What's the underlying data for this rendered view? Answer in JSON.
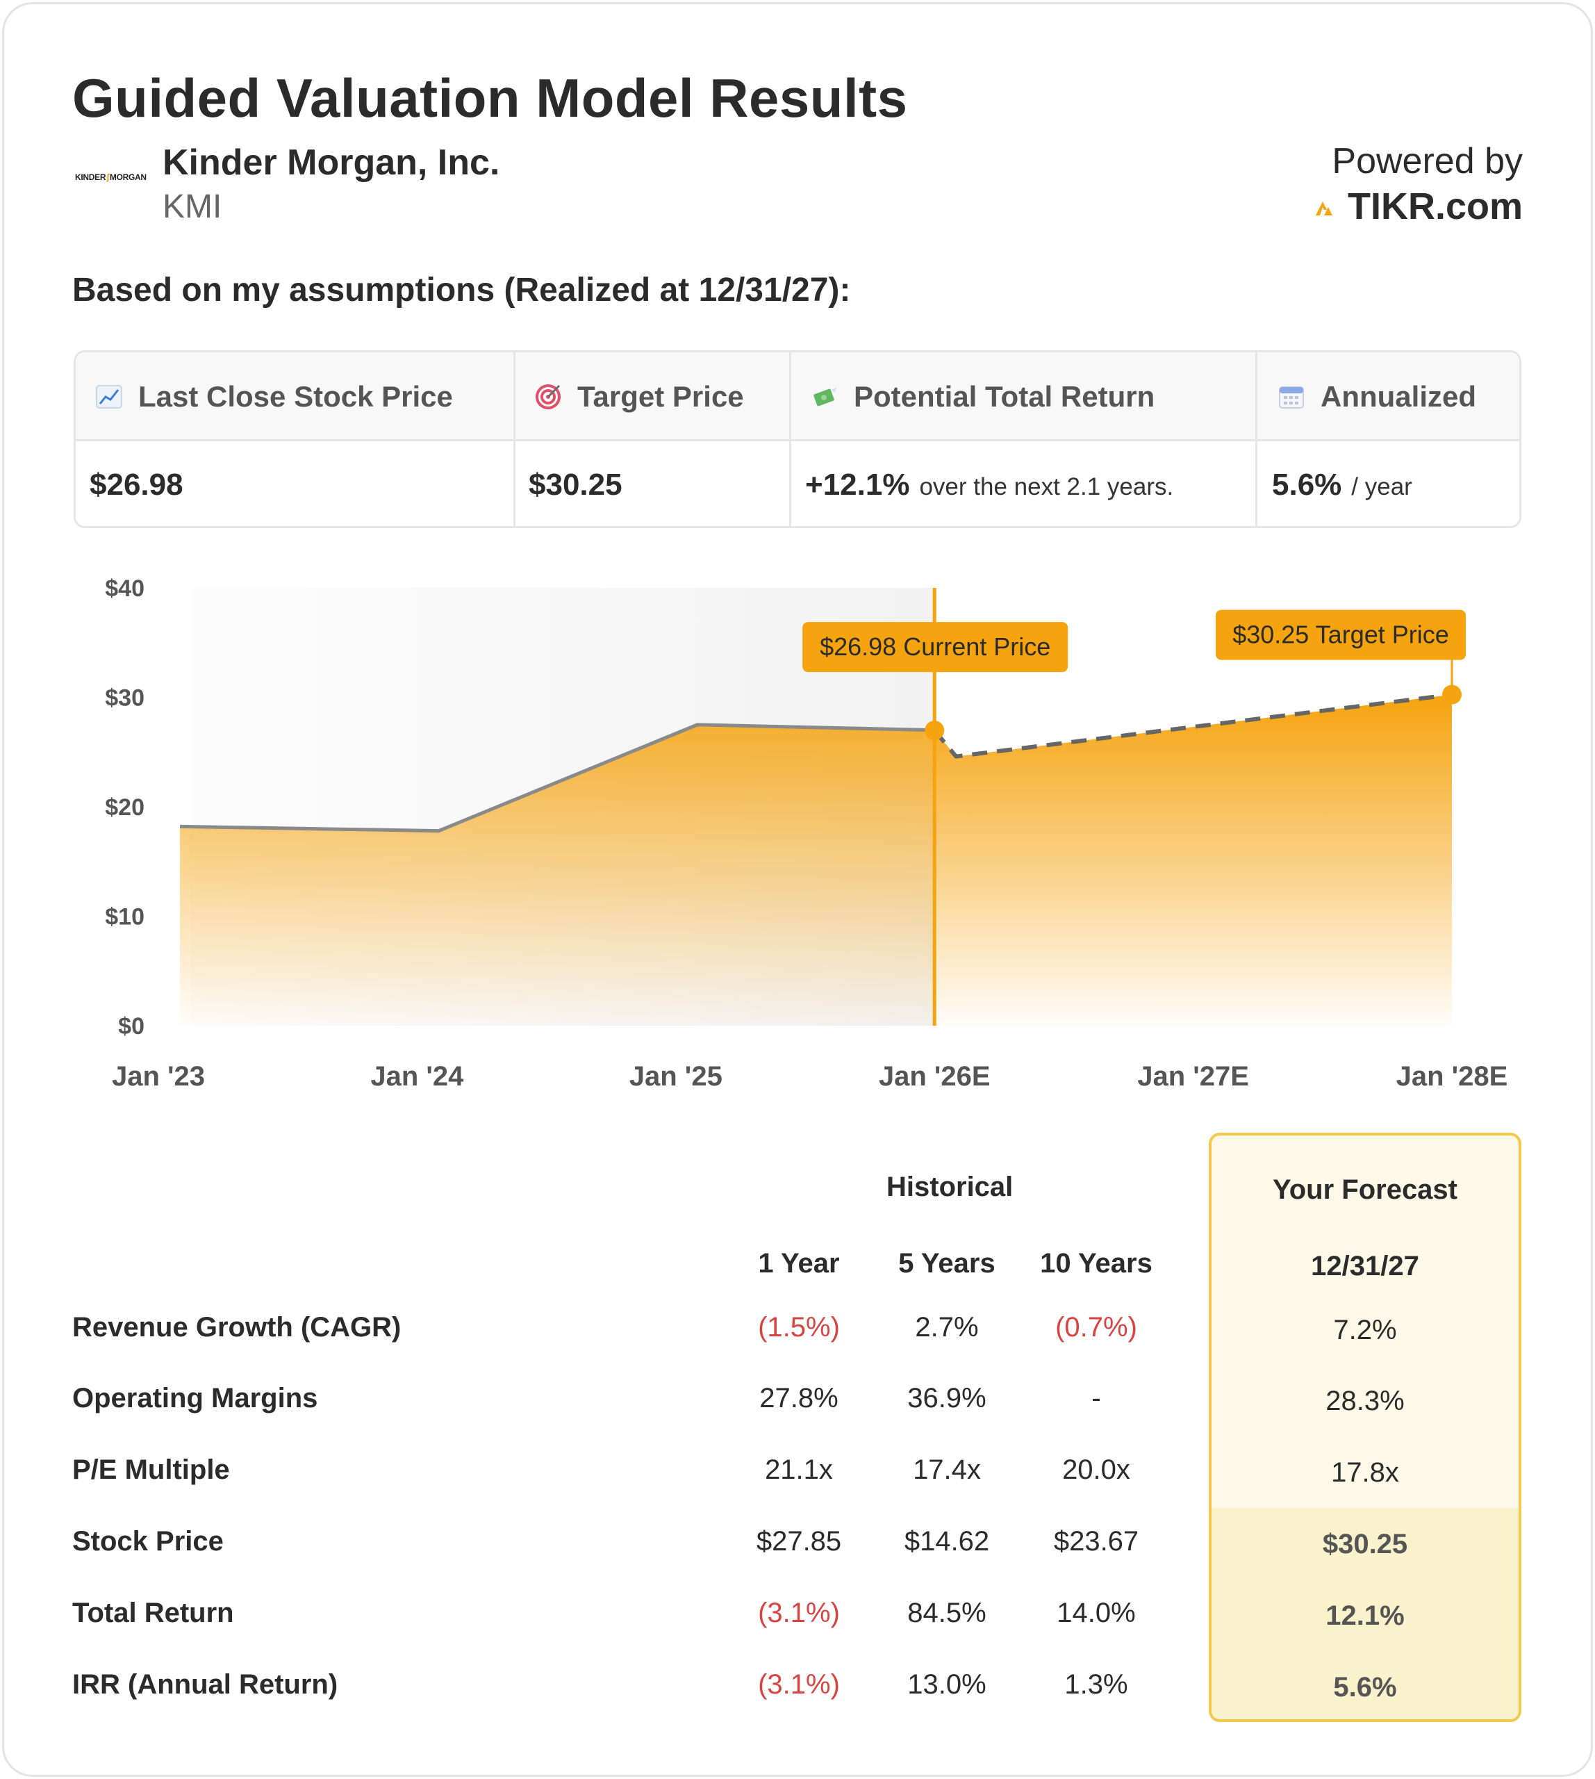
{
  "header": {
    "title": "Guided Valuation Model Results",
    "logo_text": "KINDER MORGAN",
    "company_name": "Kinder Morgan, Inc.",
    "ticker": "KMI",
    "powered_by": "Powered by",
    "brand": "TIKR.com"
  },
  "assumptions_label": "Based on my assumptions (Realized at 12/31/27):",
  "summary": {
    "last_close": {
      "label": "Last Close Stock Price",
      "icon": "chart-increasing-icon",
      "value": "$26.98"
    },
    "target": {
      "label": "Target Price",
      "icon": "target-icon",
      "value": "$30.25"
    },
    "total_return": {
      "label": "Potential Total Return",
      "icon": "money-with-wings-icon",
      "value": "+12.1%",
      "suffix": "over the next 2.1 years."
    },
    "annualized": {
      "label": "Annualized",
      "icon": "calendar-icon",
      "value": "5.6%",
      "suffix": "/ year"
    }
  },
  "chart_data": {
    "type": "area",
    "x_ticks": [
      "Jan '23",
      "Jan '24",
      "Jan '25",
      "Jan '26E",
      "Jan '27E",
      "Jan '28E"
    ],
    "y_ticks": [
      "$0",
      "$10",
      "$20",
      "$30",
      "$40"
    ],
    "ylim": [
      0,
      40
    ],
    "historical": {
      "x": [
        "2023-02",
        "2024-02",
        "2025-02",
        "2026-01"
      ],
      "y": [
        18.2,
        17.8,
        27.5,
        27.0
      ]
    },
    "forecast": {
      "x": [
        "2026-01",
        "2026-02",
        "2028-01"
      ],
      "y": [
        26.98,
        24.6,
        30.25
      ],
      "style": "dashed"
    },
    "annotations": {
      "current": {
        "label": "$26.98 Current Price",
        "x": "2026-01",
        "y": 26.98
      },
      "target": {
        "label": "$30.25 Target Price",
        "x": "2028-01",
        "y": 30.25
      }
    },
    "colors": {
      "accent": "#f5a30e",
      "line": "#8a8a8a",
      "shade": "#f2f2f2"
    }
  },
  "table": {
    "historical_label": "Historical",
    "forecast_label": "Your Forecast",
    "columns": [
      "1 Year",
      "5 Years",
      "10 Years"
    ],
    "forecast_column": "12/31/27",
    "rows": [
      {
        "label": "Revenue Growth (CAGR)",
        "values": [
          "(1.5%)",
          "2.7%",
          "(0.7%)"
        ],
        "neg": [
          true,
          false,
          true
        ],
        "forecast": "7.2%"
      },
      {
        "label": "Operating Margins",
        "values": [
          "27.8%",
          "36.9%",
          "-"
        ],
        "neg": [
          false,
          false,
          false
        ],
        "forecast": "28.3%"
      },
      {
        "label": "P/E Multiple",
        "values": [
          "21.1x",
          "17.4x",
          "20.0x"
        ],
        "neg": [
          false,
          false,
          false
        ],
        "forecast": "17.8x"
      },
      {
        "label": "Stock Price",
        "values": [
          "$27.85",
          "$14.62",
          "$23.67"
        ],
        "neg": [
          false,
          false,
          false
        ],
        "forecast": "$30.25"
      },
      {
        "label": "Total Return",
        "values": [
          "(3.1%)",
          "84.5%",
          "14.0%"
        ],
        "neg": [
          true,
          false,
          false
        ],
        "forecast": "12.1%"
      },
      {
        "label": "IRR (Annual Return)",
        "values": [
          "(3.1%)",
          "13.0%",
          "1.3%"
        ],
        "neg": [
          true,
          false,
          false
        ],
        "forecast": "5.6%"
      }
    ]
  }
}
